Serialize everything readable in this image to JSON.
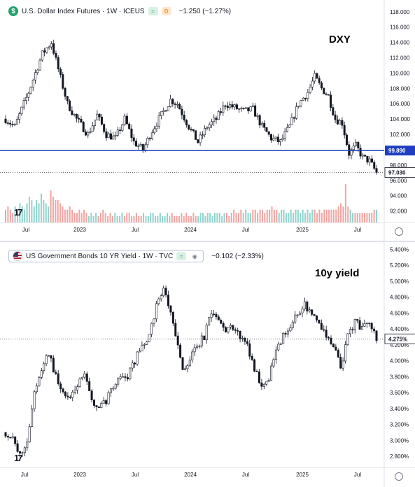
{
  "dxy_panel": {
    "legend": {
      "symbol_letter": "$",
      "title": "U.S. Dollar Index Futures · 1W · ICEUS",
      "badge_green": "≈",
      "badge_orange": "D",
      "change": "−1.250 (−1.27%)"
    },
    "annotation": "DXY",
    "price_tags": {
      "horizontal_line": "99.890",
      "last": "97.030"
    },
    "colors": {
      "up": "#26a69a",
      "down": "#ef5350",
      "line": "#1f3fbf",
      "candle": "#131722"
    }
  },
  "yield_panel": {
    "legend": {
      "title": "US Government Bonds 10 YR Yield · 1W · TVC",
      "badge_green": "≈",
      "change": "−0.102 (−2.33%)"
    },
    "annotation": "10y yield",
    "price_tags": {
      "last": "4.275%"
    }
  },
  "logo_text": "17",
  "chart_data": [
    {
      "type": "candlestick",
      "title": "U.S. Dollar Index Futures · 1W · ICEUS",
      "x_ticks": [
        "Jul",
        "2023",
        "Jul",
        "2024",
        "Jul",
        "2025",
        "Jul"
      ],
      "y_ticks": [
        "92.000",
        "94.000",
        "96.000",
        "98.000",
        "100.000",
        "102.000",
        "104.000",
        "106.000",
        "108.000",
        "110.000",
        "112.000",
        "114.000",
        "116.000",
        "118.000"
      ],
      "ylim": [
        90.5,
        118.8
      ],
      "horizontal_line": 99.89,
      "last_value": 97.03,
      "close_path": [
        {
          "week": 0,
          "close": 104.0
        },
        {
          "week": 4,
          "close": 103.0
        },
        {
          "week": 10,
          "close": 107.5
        },
        {
          "week": 16,
          "close": 112.5
        },
        {
          "week": 20,
          "close": 114.0
        },
        {
          "week": 23,
          "close": 110.5
        },
        {
          "week": 27,
          "close": 106.0
        },
        {
          "week": 31,
          "close": 104.0
        },
        {
          "week": 36,
          "close": 102.0
        },
        {
          "week": 40,
          "close": 104.5
        },
        {
          "week": 44,
          "close": 102.0
        },
        {
          "week": 48,
          "close": 101.5
        },
        {
          "week": 52,
          "close": 104.0
        },
        {
          "week": 56,
          "close": 101.0
        },
        {
          "week": 60,
          "close": 100.0
        },
        {
          "week": 64,
          "close": 102.5
        },
        {
          "week": 68,
          "close": 104.5
        },
        {
          "week": 72,
          "close": 106.5
        },
        {
          "week": 75,
          "close": 106.0
        },
        {
          "week": 80,
          "close": 103.0
        },
        {
          "week": 84,
          "close": 101.0
        },
        {
          "week": 88,
          "close": 103.0
        },
        {
          "week": 92,
          "close": 104.0
        },
        {
          "week": 96,
          "close": 106.0
        },
        {
          "week": 100,
          "close": 105.5
        },
        {
          "week": 104,
          "close": 105.0
        },
        {
          "week": 108,
          "close": 105.3
        },
        {
          "week": 112,
          "close": 103.0
        },
        {
          "week": 116,
          "close": 101.5
        },
        {
          "week": 120,
          "close": 101.0
        },
        {
          "week": 124,
          "close": 103.0
        },
        {
          "week": 128,
          "close": 106.0
        },
        {
          "week": 132,
          "close": 107.5
        },
        {
          "week": 135,
          "close": 109.5
        },
        {
          "week": 138,
          "close": 108.0
        },
        {
          "week": 141,
          "close": 107.0
        },
        {
          "week": 144,
          "close": 104.0
        },
        {
          "week": 147,
          "close": 103.5
        },
        {
          "week": 150,
          "close": 99.5
        },
        {
          "week": 153,
          "close": 100.5
        },
        {
          "week": 156,
          "close": 99.0
        },
        {
          "week": 159,
          "close": 98.5
        },
        {
          "week": 162,
          "close": 97.0
        }
      ],
      "volume_series": [
        4,
        5,
        4,
        3,
        5,
        4,
        6,
        5,
        4,
        6,
        8,
        7,
        5,
        7,
        6,
        9,
        7,
        6,
        5,
        10,
        8,
        7,
        7,
        6,
        5,
        4,
        4,
        5,
        4,
        3,
        3,
        4,
        3,
        4,
        3,
        2,
        3,
        2,
        3,
        2,
        3,
        4,
        3,
        2,
        3,
        2,
        3,
        2,
        2,
        3,
        2,
        3,
        3,
        2,
        2,
        3,
        2,
        2,
        3,
        2,
        2,
        3,
        3,
        2,
        2,
        3,
        2,
        2,
        3,
        2,
        3,
        2,
        2,
        2,
        3,
        2,
        3,
        2,
        2,
        3,
        2,
        2,
        3,
        3,
        2,
        3,
        3,
        2,
        3,
        3,
        3,
        2,
        3,
        3,
        2,
        3,
        4,
        3,
        3,
        4,
        3,
        4,
        3,
        3,
        4,
        4,
        3,
        4,
        4,
        3,
        4,
        4,
        5,
        4,
        4,
        3,
        4,
        4,
        3,
        3,
        4,
        3,
        4,
        4,
        3,
        4,
        3,
        4,
        3,
        4,
        4,
        3,
        4,
        3,
        4,
        4,
        4,
        4,
        4,
        4,
        5,
        6,
        5,
        12,
        5,
        4,
        3,
        3,
        3,
        3,
        3,
        3,
        3,
        3,
        3,
        4,
        4
      ],
      "volume_spikes": [
        {
          "week": 19,
          "value": 10
        },
        {
          "week": 146,
          "value": 12
        }
      ]
    },
    {
      "type": "candlestick",
      "title": "US Government Bonds 10 YR Yield · 1W · TVC",
      "x_ticks": [
        "Jul",
        "2023",
        "Jul",
        "2024",
        "Jul",
        "2025",
        "Jul"
      ],
      "y_ticks": [
        "2.800%",
        "3.000%",
        "3.200%",
        "3.400%",
        "3.600%",
        "3.800%",
        "4.000%",
        "4.200%",
        "4.400%",
        "4.600%",
        "4.800%",
        "5.000%",
        "5.200%",
        "5.400%"
      ],
      "ylim": [
        2.66,
        5.42
      ],
      "last_value": 4.275,
      "close_path": [
        {
          "week": 0,
          "close": 3.1
        },
        {
          "week": 3,
          "close": 3.0
        },
        {
          "week": 6,
          "close": 2.8
        },
        {
          "week": 9,
          "close": 3.0
        },
        {
          "week": 12,
          "close": 3.6
        },
        {
          "week": 15,
          "close": 3.9
        },
        {
          "week": 18,
          "close": 4.1
        },
        {
          "week": 21,
          "close": 3.8
        },
        {
          "week": 24,
          "close": 3.6
        },
        {
          "week": 27,
          "close": 3.5
        },
        {
          "week": 30,
          "close": 3.7
        },
        {
          "week": 33,
          "close": 3.8
        },
        {
          "week": 36,
          "close": 3.5
        },
        {
          "week": 39,
          "close": 3.4
        },
        {
          "week": 42,
          "close": 3.5
        },
        {
          "week": 45,
          "close": 3.7
        },
        {
          "week": 48,
          "close": 3.8
        },
        {
          "week": 51,
          "close": 3.8
        },
        {
          "week": 54,
          "close": 4.0
        },
        {
          "week": 57,
          "close": 4.2
        },
        {
          "week": 60,
          "close": 4.3
        },
        {
          "week": 63,
          "close": 4.7
        },
        {
          "week": 66,
          "close": 4.9
        },
        {
          "week": 68,
          "close": 4.7
        },
        {
          "week": 71,
          "close": 4.3
        },
        {
          "week": 74,
          "close": 3.9
        },
        {
          "week": 77,
          "close": 4.0
        },
        {
          "week": 80,
          "close": 4.2
        },
        {
          "week": 83,
          "close": 4.3
        },
        {
          "week": 86,
          "close": 4.6
        },
        {
          "week": 89,
          "close": 4.5
        },
        {
          "week": 92,
          "close": 4.4
        },
        {
          "week": 95,
          "close": 4.4
        },
        {
          "week": 98,
          "close": 4.3
        },
        {
          "week": 101,
          "close": 4.2
        },
        {
          "week": 104,
          "close": 3.9
        },
        {
          "week": 107,
          "close": 3.7
        },
        {
          "week": 110,
          "close": 3.8
        },
        {
          "week": 113,
          "close": 4.1
        },
        {
          "week": 116,
          "close": 4.3
        },
        {
          "week": 119,
          "close": 4.4
        },
        {
          "week": 122,
          "close": 4.6
        },
        {
          "week": 125,
          "close": 4.7
        },
        {
          "week": 128,
          "close": 4.6
        },
        {
          "week": 131,
          "close": 4.5
        },
        {
          "week": 134,
          "close": 4.3
        },
        {
          "week": 137,
          "close": 4.2
        },
        {
          "week": 140,
          "close": 3.9
        },
        {
          "week": 143,
          "close": 4.3
        },
        {
          "week": 146,
          "close": 4.5
        },
        {
          "week": 149,
          "close": 4.4
        },
        {
          "week": 152,
          "close": 4.5
        },
        {
          "week": 155,
          "close": 4.3
        }
      ]
    }
  ]
}
